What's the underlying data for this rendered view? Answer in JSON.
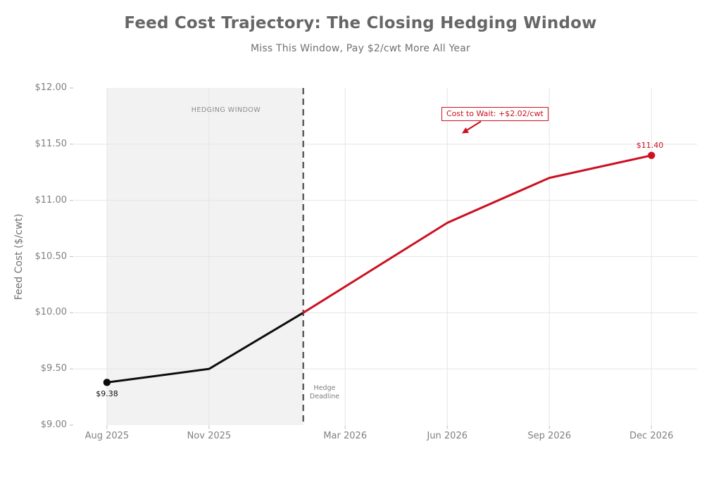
{
  "colors": {
    "red": "#cc1122",
    "black": "#0d0d0d",
    "grid": "#e5e5e5",
    "region_fill": "#f2f2f2",
    "deadline_dash": "#5a5a5a",
    "tick_mark": "#bdbdbd",
    "title_text": "#666666",
    "subtitle_text": "#717171",
    "axis_text": "#808080",
    "muted_text": "#7d7d7d",
    "window_text": "#8c8c8c"
  },
  "chart_data": {
    "type": "line",
    "title": "Feed Cost Trajectory: The Closing Hedging Window",
    "subtitle": "Miss This Window, Pay $2/cwt More All Year",
    "ylabel": "Feed Cost ($/cwt)",
    "xlabel": "",
    "x_unit": "months since Aug 2025",
    "xlim": [
      -0.97,
      17.34
    ],
    "ylim": [
      9.0,
      12.0
    ],
    "grid": true,
    "legend": "none",
    "x_ticks": [
      {
        "x": 0,
        "label": "Aug 2025"
      },
      {
        "x": 3,
        "label": "Nov 2025"
      },
      {
        "x": 7,
        "label": "Mar 2026"
      },
      {
        "x": 10,
        "label": "Jun 2026"
      },
      {
        "x": 13,
        "label": "Sep 2026"
      },
      {
        "x": 16,
        "label": "Dec 2026"
      }
    ],
    "y_ticks": [
      {
        "y": 9.0,
        "label": "$9.00"
      },
      {
        "y": 9.5,
        "label": "$9.50"
      },
      {
        "y": 10.0,
        "label": "$10.00"
      },
      {
        "y": 10.5,
        "label": "$10.50"
      },
      {
        "y": 11.0,
        "label": "$11.00"
      },
      {
        "y": 11.5,
        "label": "$11.50"
      },
      {
        "y": 12.0,
        "label": "$12.00"
      }
    ],
    "series": [
      {
        "name": "feed-cost-inside-hedging-window",
        "color_key": "black",
        "points": [
          [
            0,
            9.38
          ],
          [
            3,
            9.5
          ],
          [
            5.77,
            10.0
          ]
        ],
        "marker": "first",
        "point_label": "$9.38"
      },
      {
        "name": "feed-cost-after-deadline-drift",
        "color_key": "red",
        "points": [
          [
            5.77,
            10.0
          ],
          [
            10,
            10.8
          ],
          [
            13,
            11.2
          ],
          [
            16,
            11.4
          ]
        ],
        "marker": "last",
        "point_label": "$11.40"
      }
    ],
    "hedging_window": {
      "label": "HEDGING WINDOW",
      "x_start": 0,
      "x_end": 5.77
    },
    "deadline": {
      "label": "Hedge\nDeadline",
      "x": 5.77
    },
    "callout": {
      "text": "Cost to Wait: +$2.02/cwt"
    }
  }
}
